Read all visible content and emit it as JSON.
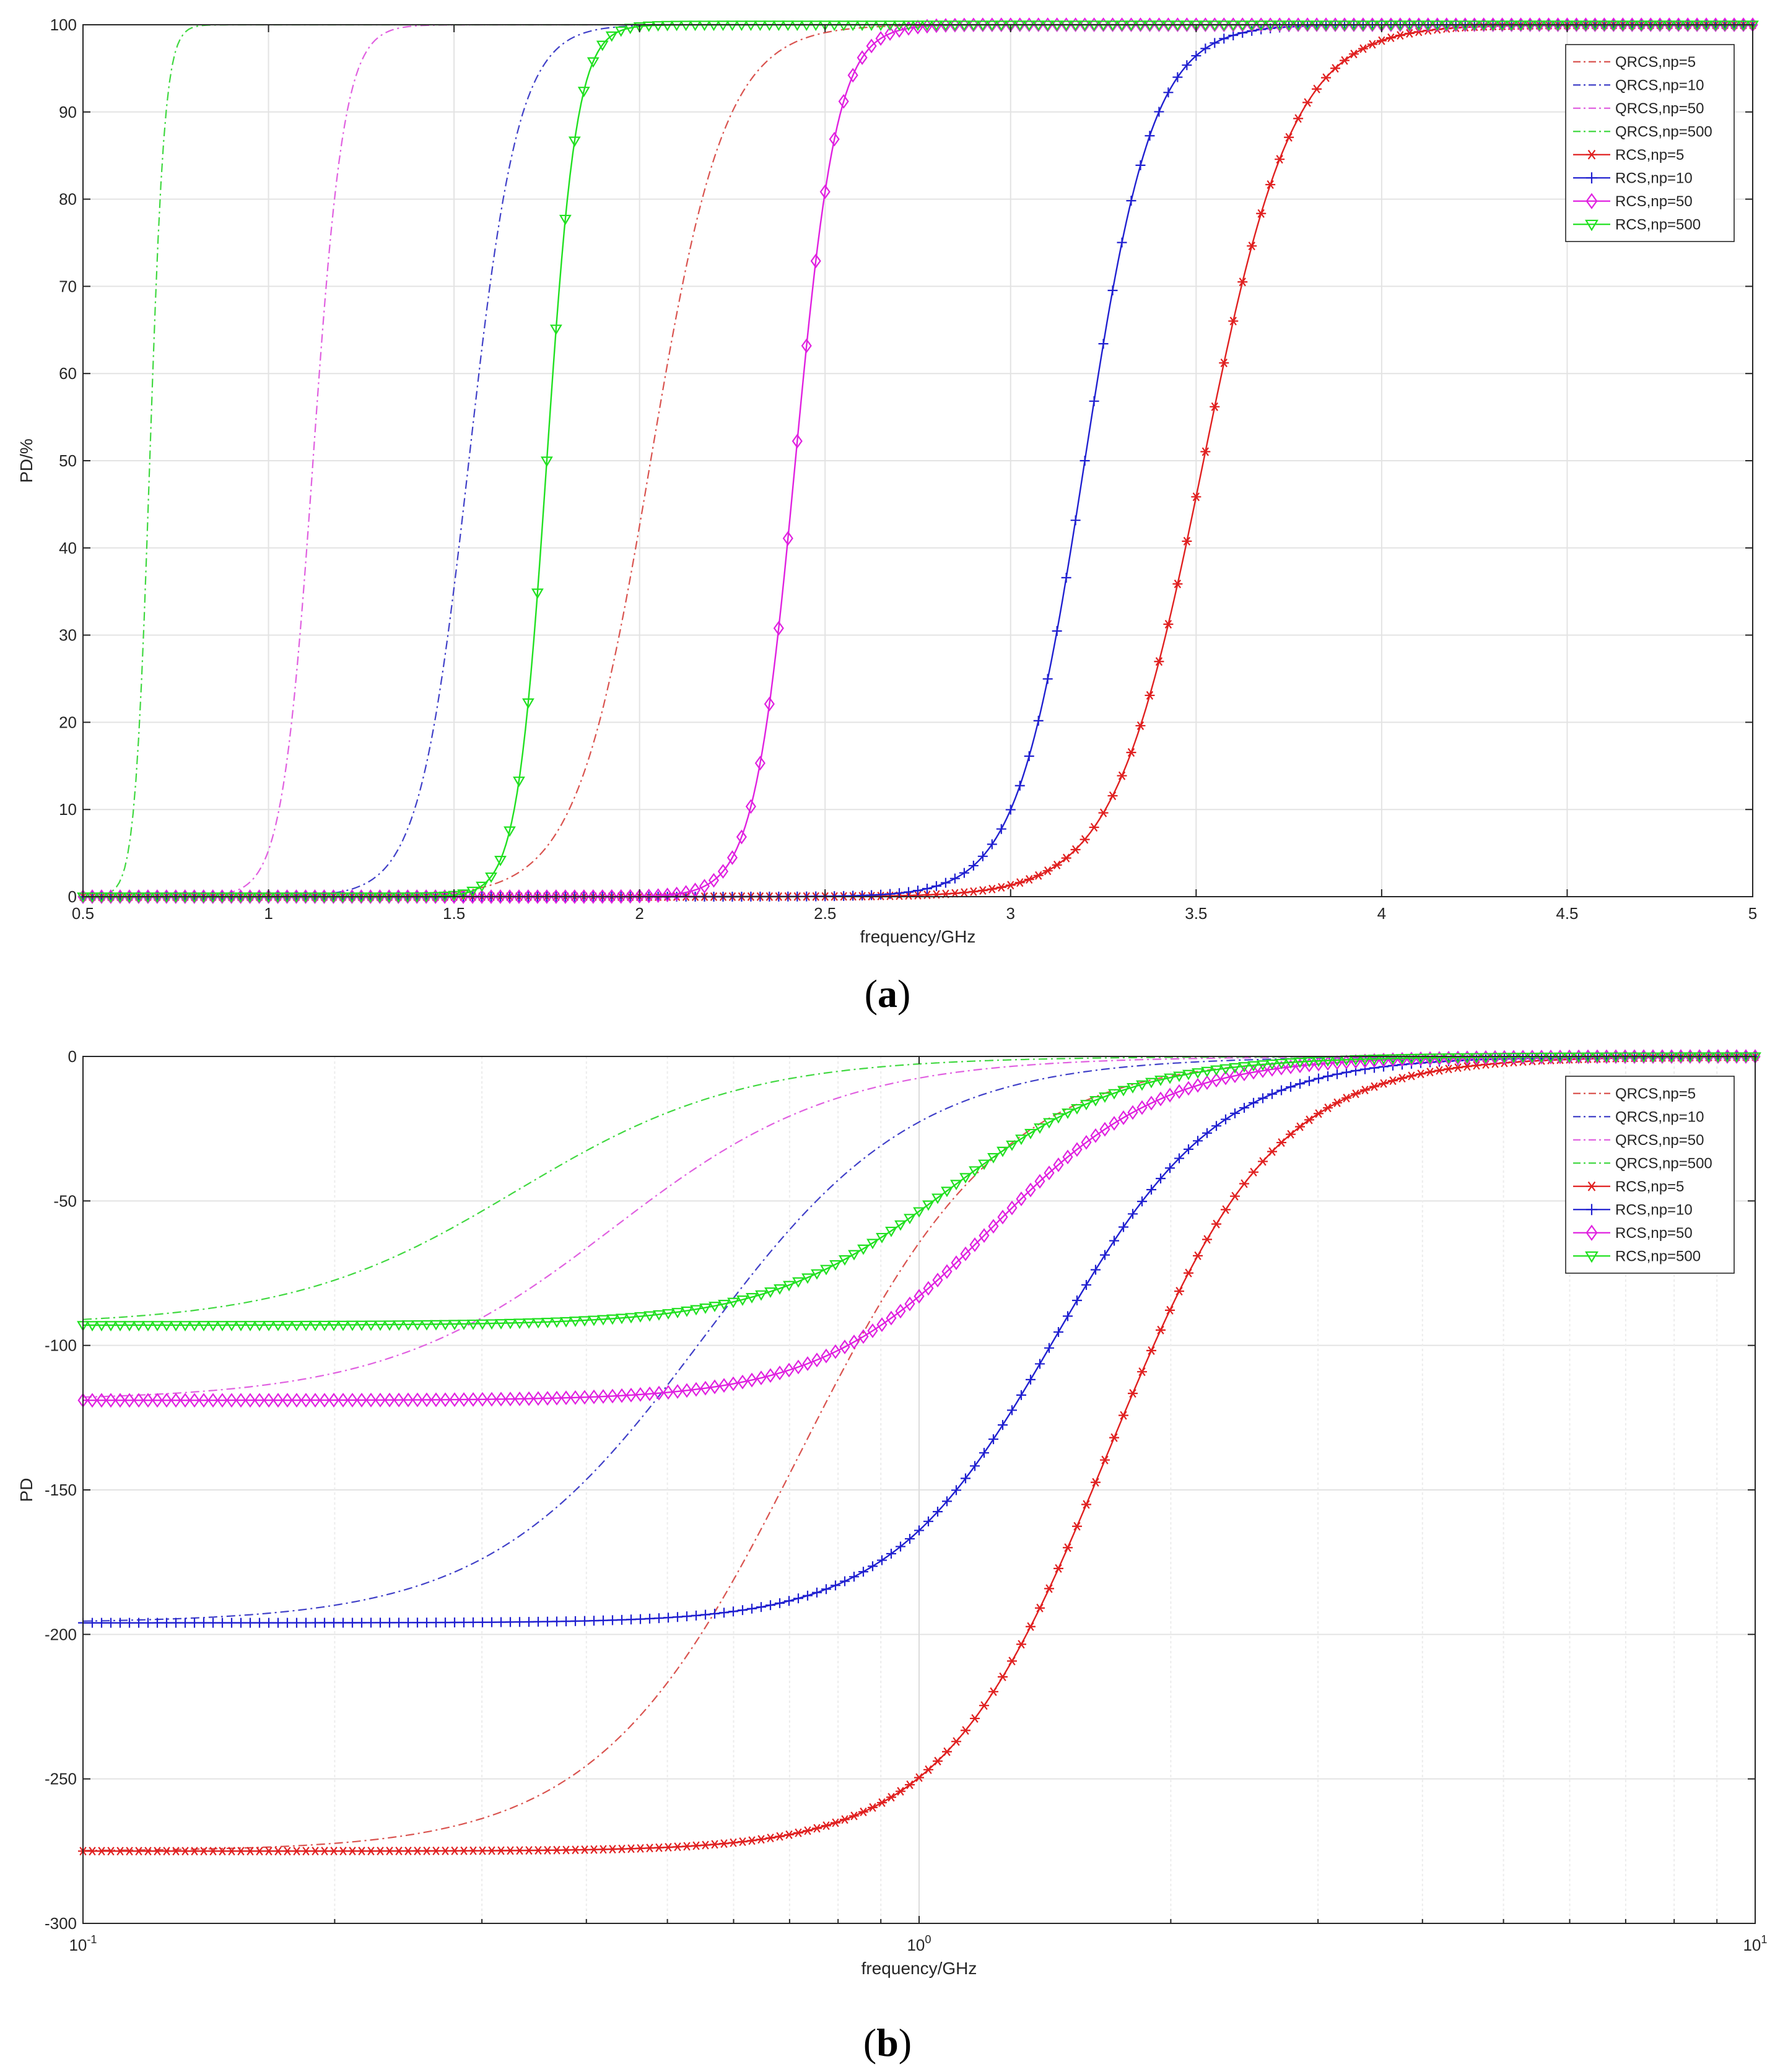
{
  "panel_labels": [
    {
      "open": "(",
      "letter": "a",
      "close": ")"
    },
    {
      "open": "(",
      "letter": "b",
      "close": ")"
    }
  ],
  "chart_data": [
    {
      "type": "line",
      "panel": "a",
      "title": "",
      "xlabel": "frequency/GHz",
      "ylabel": "PD/%",
      "xscale": "linear",
      "xlim": [
        0.5,
        5
      ],
      "ylim": [
        0,
        100
      ],
      "xticks": [
        0.5,
        1,
        1.5,
        2,
        2.5,
        3,
        3.5,
        4,
        4.5,
        5
      ],
      "xtick_labels": [
        "0.5",
        "1",
        "1.5",
        "2",
        "2.5",
        "3",
        "3.5",
        "4",
        "4.5",
        "5"
      ],
      "yticks": [
        0,
        10,
        20,
        30,
        40,
        50,
        60,
        70,
        80,
        90,
        100
      ],
      "ytick_labels": [
        "0",
        "10",
        "20",
        "30",
        "40",
        "50",
        "60",
        "70",
        "80",
        "90",
        "100"
      ],
      "grid": true,
      "legend_position": "top-right",
      "series": [
        {
          "name": "QRCS,np=5",
          "color": "#d9534f",
          "style": "dashdot",
          "marker": "none",
          "model": "logistic",
          "x50": 2.03,
          "k": 10,
          "min": 0
        },
        {
          "name": "QRCS,np=10",
          "color": "#4040c8",
          "style": "dashdot",
          "marker": "none",
          "model": "logistic",
          "x50": 1.54,
          "k": 15,
          "min": 0
        },
        {
          "name": "QRCS,np=50",
          "color": "#e060e0",
          "style": "dashdot",
          "marker": "none",
          "model": "logistic",
          "x50": 1.12,
          "k": 24,
          "min": 0
        },
        {
          "name": "QRCS,np=500",
          "color": "#40d840",
          "style": "dashdot",
          "marker": "none",
          "model": "logistic",
          "x50": 0.68,
          "k": 50,
          "min": 0
        },
        {
          "name": "RCS,np=5",
          "color": "#e02020",
          "style": "solid",
          "marker": "asterisk",
          "model": "logistic",
          "x50": 3.52,
          "k": 8.3,
          "min": 0
        },
        {
          "name": "RCS,np=10",
          "color": "#2020d0",
          "style": "solid",
          "marker": "plus",
          "model": "logistic",
          "x50": 3.2,
          "k": 11,
          "min": 0
        },
        {
          "name": "RCS,np=50",
          "color": "#e020e0",
          "style": "solid",
          "marker": "diamond",
          "model": "logistic",
          "x50": 2.42,
          "k": 18,
          "min": 0
        },
        {
          "name": "RCS,np=500",
          "color": "#20e020",
          "style": "solid",
          "marker": "triangle-down",
          "model": "logistic",
          "x50": 1.75,
          "k": 25,
          "min": 0
        }
      ]
    },
    {
      "type": "line",
      "panel": "b",
      "title": "",
      "xlabel": "frequency/GHz",
      "ylabel": "PD",
      "xscale": "log",
      "xlim": [
        0.1,
        10
      ],
      "ylim": [
        -300,
        0
      ],
      "xticks": [
        0.1,
        1,
        10
      ],
      "xtick_labels": [
        {
          "base": "10",
          "exp": "-1"
        },
        {
          "base": "10",
          "exp": "0"
        },
        {
          "base": "10",
          "exp": "1"
        }
      ],
      "yticks": [
        -300,
        -250,
        -200,
        -150,
        -100,
        -50,
        0
      ],
      "ytick_labels": [
        "-300",
        "-250",
        "-200",
        "-150",
        "-100",
        "-50",
        "0"
      ],
      "grid": true,
      "legend_position": "top-right",
      "series": [
        {
          "name": "QRCS,np=5",
          "color": "#d9534f",
          "style": "dashdot",
          "marker": "none",
          "model": "sat",
          "min": -275,
          "x50": 0.72,
          "n": 3.6
        },
        {
          "name": "QRCS,np=10",
          "color": "#4040c8",
          "style": "dashdot",
          "marker": "none",
          "model": "sat",
          "min": -196,
          "x50": 0.55,
          "n": 3.4
        },
        {
          "name": "QRCS,np=50",
          "color": "#e060e0",
          "style": "dashdot",
          "marker": "none",
          "model": "sat",
          "min": -119,
          "x50": 0.43,
          "n": 3.2
        },
        {
          "name": "QRCS,np=500",
          "color": "#40d840",
          "style": "dashdot",
          "marker": "none",
          "model": "sat",
          "min": -93,
          "x50": 0.33,
          "n": 3.2
        },
        {
          "name": "RCS,np=5",
          "color": "#e02020",
          "style": "solid",
          "marker": "asterisk",
          "model": "sat",
          "min": -275,
          "x50": 1.68,
          "n": 4.4
        },
        {
          "name": "RCS,np=10",
          "color": "#2020d0",
          "style": "solid",
          "marker": "plus",
          "model": "sat",
          "min": -196,
          "x50": 1.45,
          "n": 4.4
        },
        {
          "name": "RCS,np=50",
          "color": "#e020e0",
          "style": "solid",
          "marker": "diamond",
          "model": "sat",
          "min": -119,
          "x50": 1.22,
          "n": 4.2
        },
        {
          "name": "RCS,np=500",
          "color": "#20e020",
          "style": "solid",
          "marker": "triangle-down",
          "model": "sat",
          "min": -93,
          "x50": 1.08,
          "n": 4.0
        }
      ]
    }
  ]
}
